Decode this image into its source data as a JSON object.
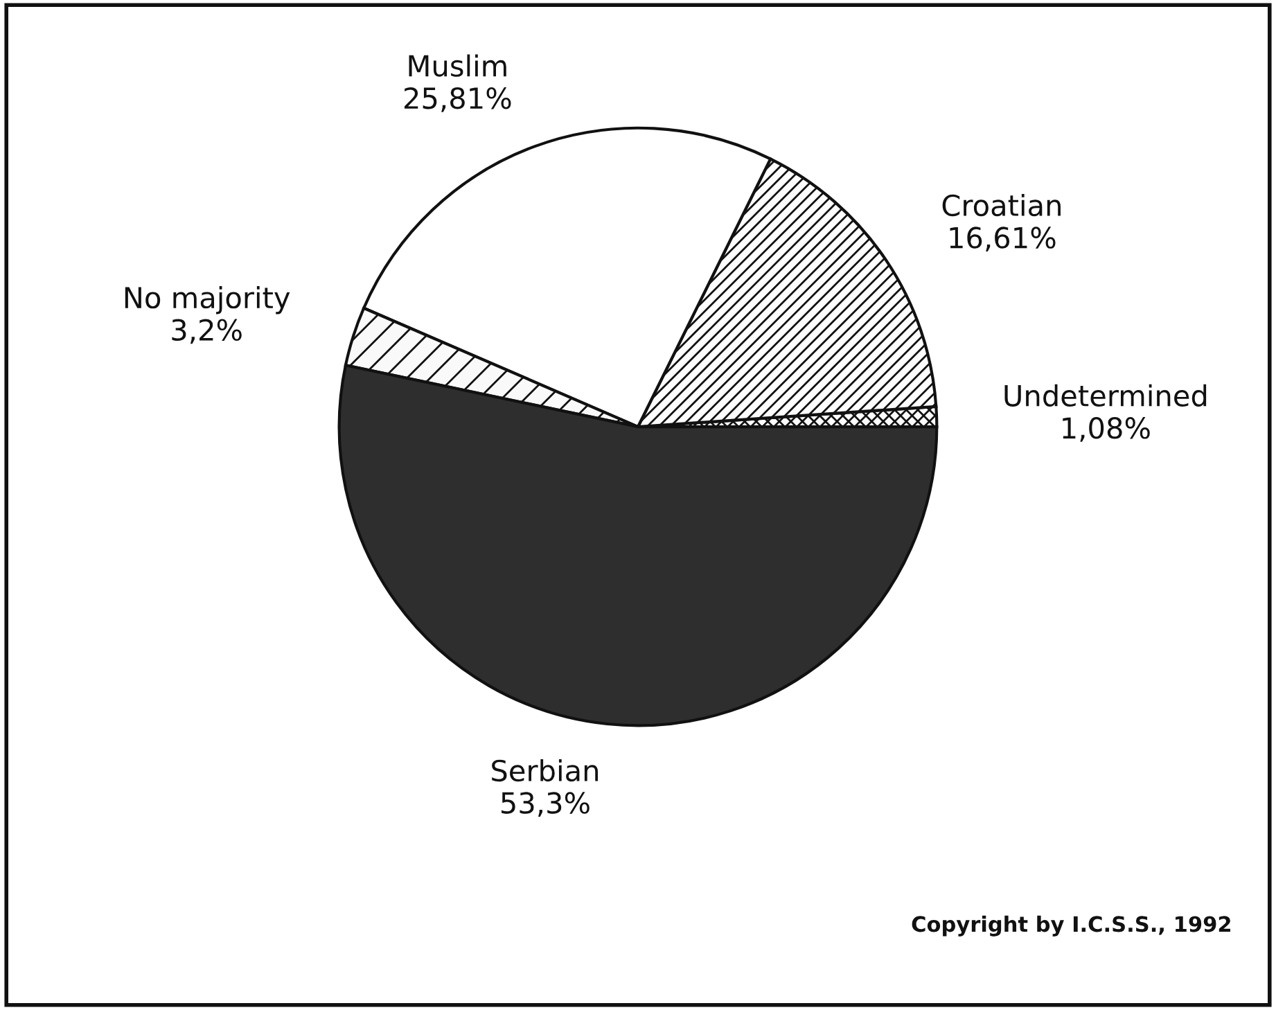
{
  "chart_data": {
    "type": "pie",
    "categories": [
      "Undetermined",
      "Croatian",
      "Muslim",
      "No majority",
      "Serbian"
    ],
    "values": [
      1.08,
      16.61,
      25.81,
      3.2,
      53.3
    ],
    "value_labels": [
      "1,08%",
      "16,61%",
      "25,81%",
      "3,2%",
      "53,3%"
    ],
    "colors": [
      "#fbfbfb",
      "#fdfdfd",
      "#ffffff",
      "#f9f9f9",
      "#2e2e2e"
    ],
    "legend": false,
    "annotations": [
      "Copyright by I.C.S.S., 1992"
    ]
  }
}
